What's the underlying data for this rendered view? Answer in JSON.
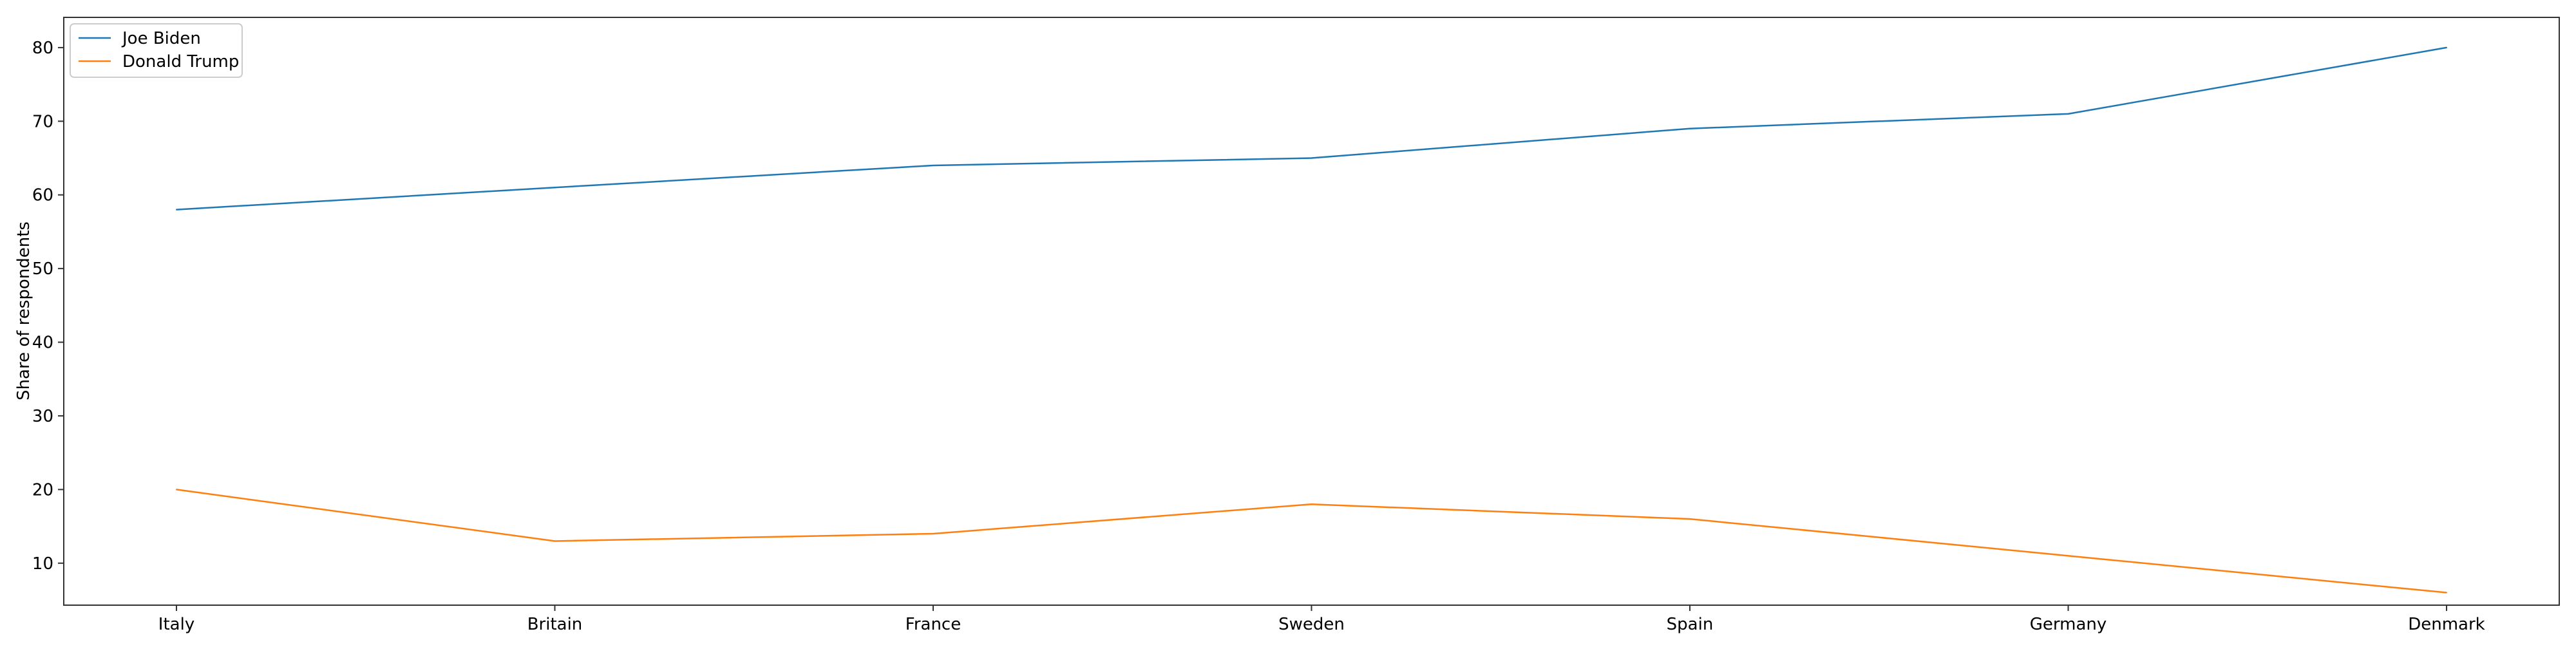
{
  "chart_data": {
    "type": "line",
    "title": "",
    "xlabel": "",
    "ylabel": "Share of respondents",
    "categories": [
      "Italy",
      "Britain",
      "France",
      "Sweden",
      "Spain",
      "Germany",
      "Denmark"
    ],
    "ylim": [
      4.3,
      84.1
    ],
    "yticks": [
      10,
      20,
      30,
      40,
      50,
      60,
      70,
      80
    ],
    "grid": false,
    "legend_position": "top-left",
    "series": [
      {
        "name": "Joe Biden",
        "color": "#1f77b4",
        "values": [
          58,
          61,
          64,
          65,
          69,
          71,
          80
        ]
      },
      {
        "name": "Donald Trump",
        "color": "#ff7f0e",
        "values": [
          20,
          13,
          14,
          18,
          16,
          11,
          6
        ]
      }
    ]
  }
}
